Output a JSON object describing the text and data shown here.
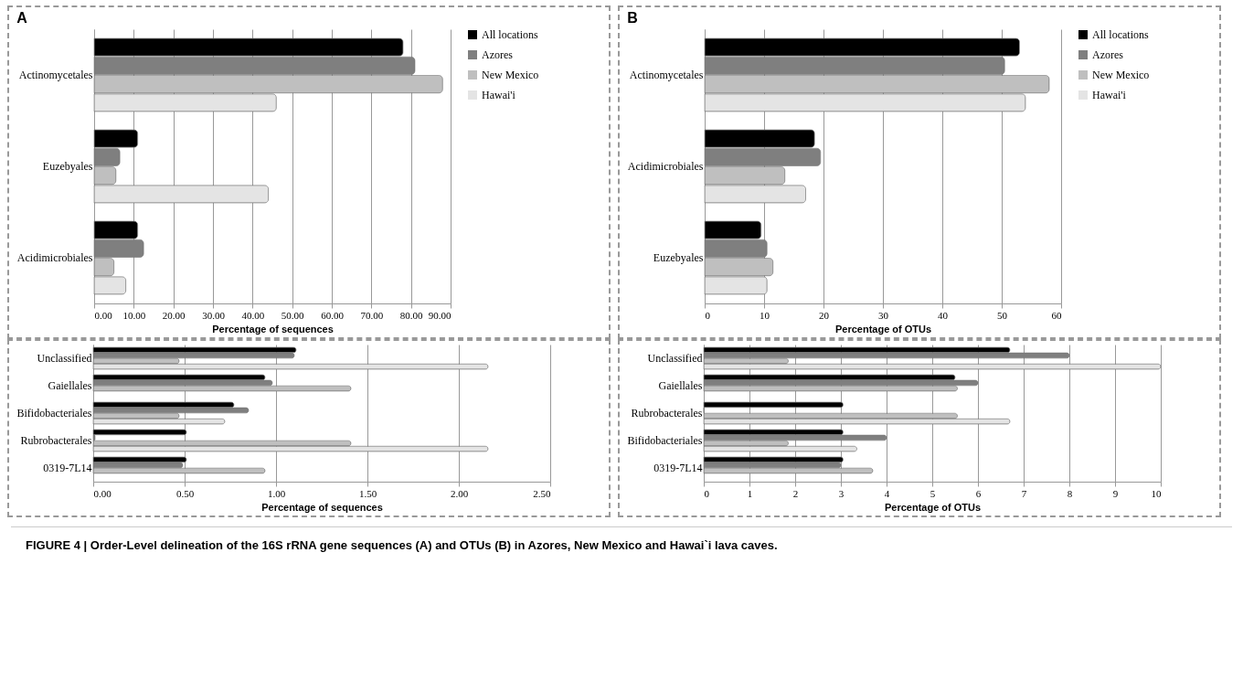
{
  "chart_data": [
    {
      "type": "bar",
      "orientation": "horizontal",
      "title": "A",
      "xlabel": "Percentage of sequences",
      "categories": [
        "Actinomycetales",
        "Euzebyales",
        "Acidimicrobiales"
      ],
      "series": [
        {
          "name": "All locations",
          "color": "#000000",
          "values": [
            78,
            11,
            11
          ]
        },
        {
          "name": "Azores",
          "color": "#7f7f7f",
          "values": [
            81,
            6.5,
            12.5
          ]
        },
        {
          "name": "New Mexico",
          "color": "#bfbfbf",
          "values": [
            88,
            5.5,
            5
          ]
        },
        {
          "name": "Hawai'i",
          "color": "#e4e4e4",
          "values": [
            46,
            44,
            8
          ]
        }
      ],
      "xlim": [
        0,
        90
      ],
      "xticks": [
        {
          "value": 0,
          "label": "0.00"
        },
        {
          "value": 10,
          "label": "10.00"
        },
        {
          "value": 20,
          "label": "20.00"
        },
        {
          "value": 30,
          "label": "30.00"
        },
        {
          "value": 40,
          "label": "40.00"
        },
        {
          "value": 50,
          "label": "50.00"
        },
        {
          "value": 60,
          "label": "60.00"
        },
        {
          "value": 70,
          "label": "70.00"
        },
        {
          "value": 80,
          "label": "80.00"
        },
        {
          "value": 90,
          "label": "90.00"
        }
      ],
      "grid": "x",
      "legend": "right"
    },
    {
      "type": "bar",
      "orientation": "horizontal",
      "xlabel": "Percentage of sequences",
      "categories": [
        "Unclassified",
        "Gaiellales",
        "Bifidobacteriales",
        "Rubrobacterales",
        "0319-7L14"
      ],
      "series": [
        {
          "color": "#000000",
          "values": [
            1.11,
            0.94,
            0.77,
            0.51,
            0.51
          ]
        },
        {
          "color": "#7f7f7f",
          "values": [
            1.1,
            0.98,
            0.85,
            0.01,
            0.49
          ]
        },
        {
          "color": "#bfbfbf",
          "values": [
            0.47,
            1.41,
            0.47,
            1.41,
            0.94
          ]
        },
        {
          "color": "#e4e4e4",
          "values": [
            2.16,
            null,
            0.72,
            2.16,
            null
          ]
        }
      ],
      "xlim": [
        0,
        2.5
      ],
      "xticks": [
        {
          "value": 0,
          "label": "0.00"
        },
        {
          "value": 0.5,
          "label": "0.50"
        },
        {
          "value": 1,
          "label": "1.00"
        },
        {
          "value": 1.5,
          "label": "1.50"
        },
        {
          "value": 2,
          "label": "2.00"
        },
        {
          "value": 2.5,
          "label": "2.50"
        }
      ],
      "grid": "x"
    },
    {
      "type": "bar",
      "orientation": "horizontal",
      "title": "B",
      "xlabel": "Percentage of  OTUs",
      "categories": [
        "Actinomycetales",
        "Acidimicrobiales",
        "Euzebyales"
      ],
      "series": [
        {
          "name": "All locations",
          "color": "#000000",
          "values": [
            53,
            18.5,
            9.5
          ]
        },
        {
          "name": "Azores",
          "color": "#7f7f7f",
          "values": [
            50.5,
            19.5,
            10.5
          ]
        },
        {
          "name": "New Mexico",
          "color": "#bfbfbf",
          "values": [
            58,
            13.5,
            11.5
          ]
        },
        {
          "name": "Hawai'i",
          "color": "#e4e4e4",
          "values": [
            54,
            17,
            10.5
          ]
        }
      ],
      "xlim": [
        0,
        60
      ],
      "xticks": [
        0,
        10,
        20,
        30,
        40,
        50,
        60
      ],
      "grid": "x",
      "legend": "right"
    },
    {
      "type": "bar",
      "orientation": "horizontal",
      "xlabel": "Percentage of  OTUs",
      "categories": [
        "Unclassified",
        "Gaiellales",
        "Rubrobacterales",
        "Bifidobacteriales",
        "0319-7L14"
      ],
      "series": [
        {
          "color": "#000000",
          "values": [
            6.7,
            5.5,
            3.05,
            3.05,
            3.05
          ]
        },
        {
          "color": "#7f7f7f",
          "values": [
            8,
            6,
            0,
            4,
            3
          ]
        },
        {
          "color": "#bfbfbf",
          "values": [
            1.85,
            5.55,
            5.55,
            1.85,
            3.7
          ]
        },
        {
          "color": "#e4e4e4",
          "values": [
            10,
            null,
            6.7,
            3.35,
            null
          ]
        }
      ],
      "xlim": [
        0,
        10
      ],
      "xticks": [
        0,
        1,
        2,
        3,
        4,
        5,
        6,
        7,
        8,
        9,
        10
      ],
      "grid": "x",
      "annotations": [
        "FIGURE 4 | Order-Level delineation of the 16S rRNA gene sequences (A) and OTUs (B) in Azores, New Mexico and Hawai`i lava caves."
      ]
    }
  ]
}
